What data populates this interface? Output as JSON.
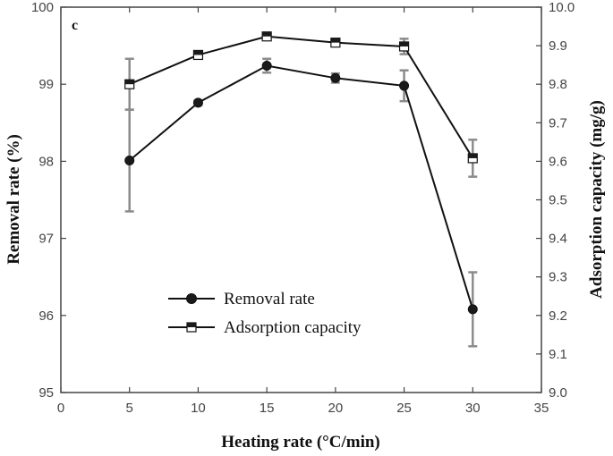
{
  "chart_data": {
    "type": "line",
    "panel_label": "c",
    "xlabel": "Heating rate (°C/min)",
    "ylabel_left": "Removal rate (%)",
    "ylabel_right": "Adsorption capacity (mg/g)",
    "xlim": [
      0,
      35
    ],
    "xticks": [
      0,
      5,
      10,
      15,
      20,
      25,
      30,
      35
    ],
    "ylim_left": [
      95,
      100
    ],
    "yticks_left": [
      95,
      96,
      97,
      98,
      99,
      100
    ],
    "ylim_right": [
      9.0,
      10.0
    ],
    "yticks_right": [
      "9.0",
      "9.1",
      "9.2",
      "9.3",
      "9.4",
      "9.5",
      "9.6",
      "9.7",
      "9.8",
      "9.9",
      "10.0"
    ],
    "legend_position": "lower-left",
    "series": [
      {
        "name": "Removal rate",
        "axis": "left",
        "marker": "filled-circle",
        "x": [
          5,
          10,
          15,
          20,
          25,
          30
        ],
        "y": [
          98.01,
          98.76,
          99.24,
          99.08,
          98.98,
          96.08
        ],
        "error": [
          0.66,
          0.03,
          0.09,
          0.06,
          0.2,
          0.48
        ]
      },
      {
        "name": "Adsorption capacity",
        "axis": "right",
        "marker": "half-open-square",
        "x": [
          5,
          10,
          15,
          20,
          25,
          30
        ],
        "y": [
          9.8,
          9.876,
          9.924,
          9.908,
          9.898,
          9.608
        ],
        "error": [
          0.066,
          0.004,
          0.008,
          0.006,
          0.02,
          0.048
        ]
      }
    ]
  }
}
